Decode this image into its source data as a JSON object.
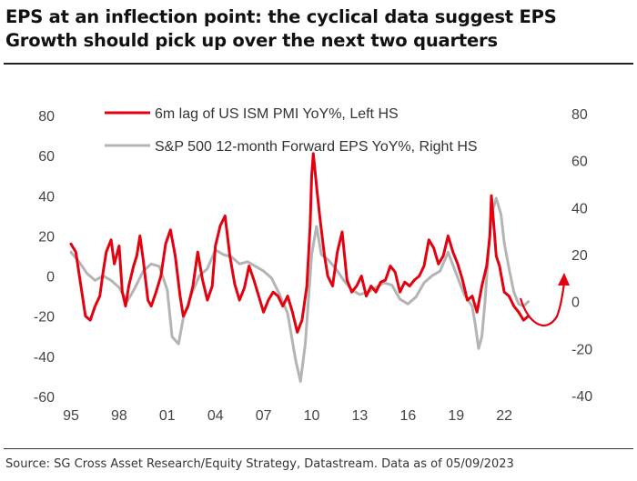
{
  "header": {
    "title": "EPS at an inflection point: the cyclical data suggest EPS Growth should pick up over the next two quarters"
  },
  "footer": {
    "source": "Source: SG Cross Asset Research/Equity Strategy, Datastream. Data as of 05/09/2023"
  },
  "colors": {
    "red_series": "#e3000f",
    "grey_series": "#b4b4b4",
    "axis_text": "#444444",
    "arrow": "#e3000f"
  },
  "chart_data": {
    "type": "line",
    "title": "",
    "xlabel": "",
    "ylabel": "",
    "grid": false,
    "legend_position": "top-center",
    "x_tick_labels": [
      "95",
      "98",
      "01",
      "04",
      "07",
      "10",
      "13",
      "16",
      "19",
      "22"
    ],
    "x_tick_years": [
      1995,
      1998,
      2001,
      2004,
      2007,
      2010,
      2013,
      2016,
      2019,
      2022
    ],
    "xlim": [
      1995,
      2024.6
    ],
    "left_axis": {
      "ylim": [
        -60,
        80
      ],
      "ticks": [
        -60,
        -40,
        -20,
        0,
        20,
        40,
        60,
        80
      ]
    },
    "right_axis": {
      "ylim": [
        -40,
        80
      ],
      "ticks": [
        -40,
        -20,
        0,
        20,
        40,
        60,
        80
      ]
    },
    "annotation": "red curved arrow pointing upward after 2023",
    "series": [
      {
        "name": "6m lag of US ISM PMI YoY%, Left HS",
        "axis": "left",
        "x": [
          1995.0,
          1995.3,
          1995.6,
          1995.9,
          1996.2,
          1996.5,
          1996.8,
          1997.0,
          1997.2,
          1997.5,
          1997.7,
          1998.0,
          1998.2,
          1998.4,
          1998.6,
          1998.9,
          1999.1,
          1999.3,
          1999.5,
          1999.8,
          2000.0,
          2000.3,
          2000.6,
          2000.9,
          2001.2,
          2001.5,
          2001.8,
          2002.0,
          2002.3,
          2002.6,
          2002.9,
          2003.2,
          2003.5,
          2003.8,
          2004.0,
          2004.3,
          2004.6,
          2004.9,
          2005.2,
          2005.5,
          2005.8,
          2006.1,
          2006.4,
          2006.7,
          2007.0,
          2007.3,
          2007.6,
          2007.9,
          2008.2,
          2008.5,
          2008.8,
          2009.1,
          2009.4,
          2009.7,
          2009.9,
          2010.0,
          2010.1,
          2010.3,
          2010.5,
          2010.8,
          2011.0,
          2011.3,
          2011.6,
          2011.9,
          2012.2,
          2012.5,
          2012.8,
          2013.1,
          2013.4,
          2013.7,
          2014.0,
          2014.3,
          2014.6,
          2014.9,
          2015.2,
          2015.5,
          2015.8,
          2016.1,
          2016.4,
          2016.7,
          2017.0,
          2017.3,
          2017.6,
          2017.9,
          2018.2,
          2018.5,
          2018.8,
          2019.1,
          2019.4,
          2019.7,
          2020.0,
          2020.3,
          2020.6,
          2020.9,
          2021.1,
          2021.2,
          2021.3,
          2021.4,
          2021.5,
          2021.7,
          2022.0,
          2022.3,
          2022.6,
          2022.9,
          2023.2,
          2023.5
        ],
        "values": [
          16,
          12,
          -4,
          -20,
          -22,
          -15,
          -10,
          2,
          12,
          18,
          6,
          15,
          -8,
          -15,
          -5,
          5,
          10,
          20,
          8,
          -12,
          -15,
          -8,
          0,
          16,
          23,
          10,
          -10,
          -20,
          -15,
          -5,
          12,
          -2,
          -12,
          -5,
          15,
          25,
          30,
          10,
          -4,
          -12,
          -6,
          5,
          -2,
          -10,
          -18,
          -12,
          -8,
          -10,
          -15,
          -10,
          -18,
          -28,
          -22,
          -5,
          25,
          50,
          61,
          45,
          30,
          10,
          0,
          -5,
          12,
          22,
          -2,
          -8,
          -5,
          0,
          -10,
          -5,
          -8,
          -3,
          -2,
          5,
          2,
          -8,
          -3,
          -5,
          -2,
          0,
          5,
          18,
          14,
          6,
          10,
          20,
          12,
          6,
          -2,
          -12,
          -10,
          -18,
          -5,
          5,
          20,
          40,
          30,
          20,
          10,
          5,
          -8,
          -10,
          -15,
          -18,
          -22,
          -20
        ]
      },
      {
        "name": "S&P 500 12-month Forward EPS YoY%, Right HS",
        "axis": "right",
        "x": [
          1995.0,
          1995.5,
          1996.0,
          1996.5,
          1997.0,
          1997.5,
          1998.0,
          1998.5,
          1999.0,
          1999.5,
          2000.0,
          2000.5,
          2001.0,
          2001.3,
          2001.7,
          2002.0,
          2002.5,
          2003.0,
          2003.5,
          2004.0,
          2004.5,
          2005.0,
          2005.5,
          2006.0,
          2006.5,
          2007.0,
          2007.5,
          2008.0,
          2008.5,
          2009.0,
          2009.3,
          2009.6,
          2010.0,
          2010.3,
          2010.6,
          2011.0,
          2011.5,
          2012.0,
          2012.5,
          2013.0,
          2013.5,
          2014.0,
          2014.5,
          2015.0,
          2015.5,
          2016.0,
          2016.5,
          2017.0,
          2017.5,
          2018.0,
          2018.5,
          2019.0,
          2019.5,
          2020.0,
          2020.2,
          2020.4,
          2020.6,
          2020.8,
          2021.0,
          2021.2,
          2021.5,
          2021.8,
          2022.0,
          2022.3,
          2022.6,
          2022.9,
          2023.2,
          2023.5
        ],
        "values": [
          21,
          17,
          12,
          9,
          11,
          9,
          6,
          0,
          6,
          13,
          16,
          15,
          5,
          -15,
          -18,
          -7,
          3,
          11,
          14,
          22,
          20,
          19,
          16,
          17,
          15,
          13,
          10,
          3,
          -5,
          -25,
          -34,
          -18,
          20,
          32,
          20,
          18,
          14,
          9,
          5,
          3,
          4,
          6,
          8,
          7,
          1,
          -1,
          2,
          8,
          11,
          13,
          21,
          12,
          3,
          -2,
          -10,
          -20,
          -15,
          0,
          20,
          37,
          44,
          37,
          25,
          14,
          4,
          -1,
          -2,
          0
        ]
      }
    ]
  }
}
